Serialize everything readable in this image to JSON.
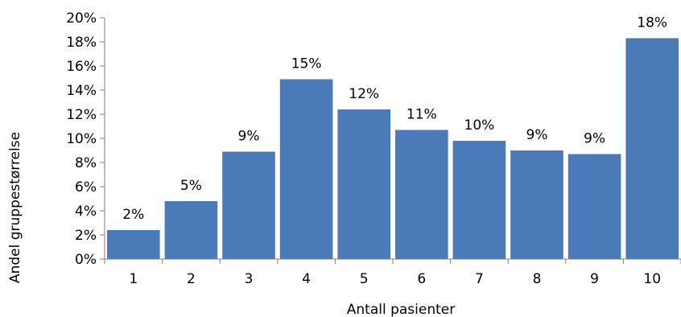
{
  "chart_data": {
    "type": "bar",
    "title": "",
    "xlabel": "Antall pasienter",
    "ylabel": "Andel gruppestørrelse",
    "categories": [
      "1",
      "2",
      "3",
      "4",
      "5",
      "6",
      "7",
      "8",
      "9",
      "10"
    ],
    "values": [
      2.4,
      4.8,
      8.9,
      14.9,
      12.4,
      10.7,
      9.8,
      9.0,
      8.7,
      18.3
    ],
    "data_labels": [
      "2%",
      "5%",
      "9%",
      "15%",
      "12%",
      "11%",
      "10%",
      "9%",
      "9%",
      "18%"
    ],
    "ylim": [
      0,
      20
    ],
    "yticks": [
      0,
      2,
      4,
      6,
      8,
      10,
      12,
      14,
      16,
      18,
      20
    ],
    "ytick_labels": [
      "0%",
      "2%",
      "4%",
      "6%",
      "8%",
      "10%",
      "12%",
      "14%",
      "16%",
      "18%",
      "20%"
    ],
    "grid": false,
    "legend": "none",
    "colors": {
      "bar": "#4a7ab8",
      "axis": "#808080"
    }
  }
}
